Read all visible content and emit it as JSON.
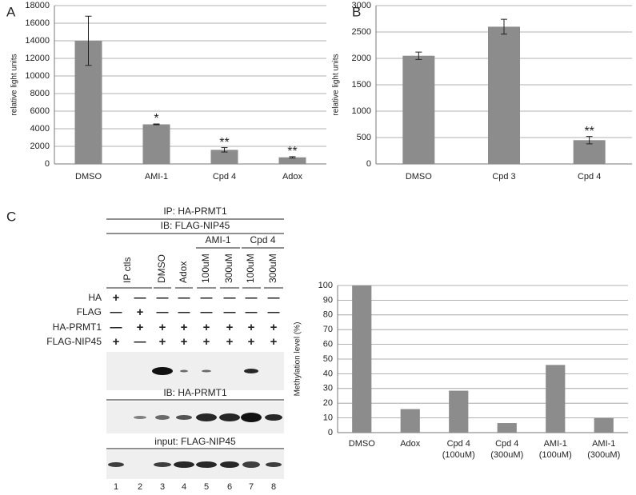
{
  "chart_data": [
    {
      "type": "bar",
      "panel": "A",
      "ylabel": "relative light units",
      "categories": [
        "DMSO",
        "AMI-1",
        "Cpd 4",
        "Adox"
      ],
      "values": [
        14000,
        4500,
        1600,
        750
      ],
      "errors": [
        2800,
        50,
        250,
        80
      ],
      "value_annotations": [
        null,
        "*",
        "**",
        "**"
      ],
      "color": "#8c8c8c",
      "ylim": [
        0,
        18000
      ],
      "yticks": [
        0,
        2000,
        4000,
        6000,
        8000,
        10000,
        12000,
        14000,
        16000,
        18000
      ],
      "grid": true
    },
    {
      "type": "bar",
      "panel": "B",
      "ylabel": "relative light units",
      "categories": [
        "DMSO",
        "Cpd 3",
        "Cpd 4"
      ],
      "values": [
        2050,
        2600,
        450
      ],
      "errors": [
        70,
        140,
        70
      ],
      "value_annotations": [
        null,
        null,
        "**"
      ],
      "color": "#8c8c8c",
      "ylim": [
        0,
        3000
      ],
      "yticks": [
        0,
        500,
        1000,
        1500,
        2000,
        2500,
        3000
      ],
      "grid": true
    },
    {
      "type": "bar",
      "ylabel": "Methylation level (%)",
      "categories": [
        [
          "DMSO"
        ],
        [
          "Adox"
        ],
        [
          "Cpd 4",
          "(100uM)"
        ],
        [
          "Cpd 4",
          "(300uM)"
        ],
        [
          "AMI-1",
          "(100uM)"
        ],
        [
          "AMI-1",
          "(300uM)"
        ]
      ],
      "values": [
        100,
        16,
        28.5,
        6.5,
        46,
        10
      ],
      "color": "#8c8c8c",
      "ylim": [
        0,
        100
      ],
      "yticks": [
        0,
        10,
        20,
        30,
        40,
        50,
        60,
        70,
        80,
        90,
        100
      ],
      "grid": true
    }
  ],
  "blot": {
    "panel": "C",
    "header1": "IP: HA-PRMT1",
    "header2": "IB: FLAG-NIP45",
    "groups": [
      "AMI-1",
      "Cpd 4"
    ],
    "lanes": [
      "IP ctls",
      "DMSO",
      "Adox",
      "100uM",
      "300uM",
      "100uM",
      "300uM"
    ],
    "rows": [
      {
        "name": "HA",
        "marks": [
          "+",
          "—",
          "—",
          "—",
          "—",
          "—",
          "—",
          "—"
        ]
      },
      {
        "name": "FLAG",
        "marks": [
          "—",
          "+",
          "—",
          "—",
          "—",
          "—",
          "—",
          "—"
        ]
      },
      {
        "name": "HA-PRMT1",
        "marks": [
          "—",
          "+",
          "+",
          "+",
          "+",
          "+",
          "+",
          "+"
        ]
      },
      {
        "name": "FLAG-NIP45",
        "marks": [
          "+",
          "—",
          "+",
          "+",
          "+",
          "+",
          "+",
          "+"
        ]
      }
    ],
    "ib2": "IB: HA-PRMT1",
    "input": "input: FLAG-NIP45",
    "lane_numbers": [
      "1",
      "2",
      "3",
      "4",
      "5",
      "6",
      "7",
      "8"
    ]
  }
}
